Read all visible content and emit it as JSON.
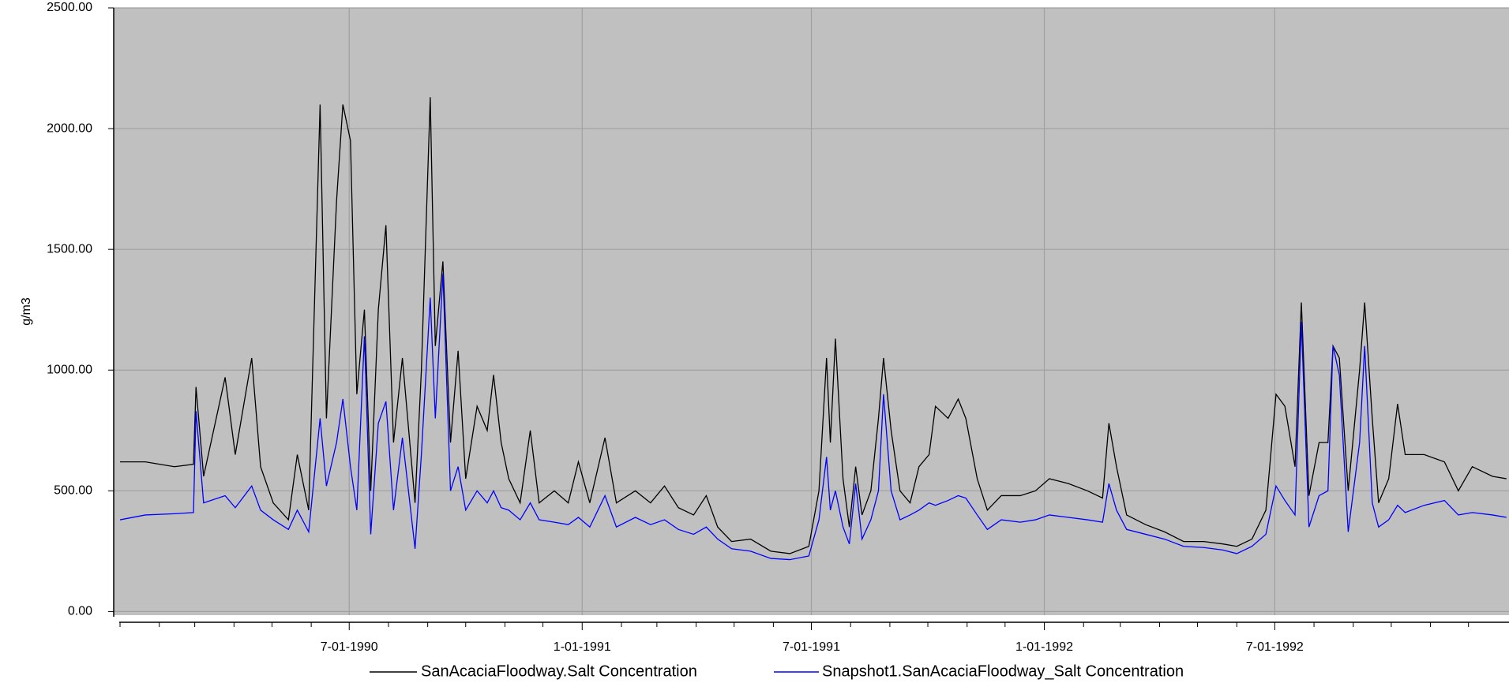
{
  "chart_data": {
    "type": "line",
    "y_label": "g/m3",
    "xlim": [
      "1989-12-27",
      "1993-01-02"
    ],
    "ylim": [
      -15,
      2500
    ],
    "yticks": [
      {
        "value": 0,
        "label": "0.00"
      },
      {
        "value": 500,
        "label": "500.00"
      },
      {
        "value": 1000,
        "label": "1000.00"
      },
      {
        "value": 1500,
        "label": "1500.00"
      },
      {
        "value": 2000,
        "label": "2000.00"
      },
      {
        "value": 2500,
        "label": "2500.00"
      }
    ],
    "xticks": [
      {
        "value": "1990-07-01",
        "label": "7-01-1990"
      },
      {
        "value": "1991-01-01",
        "label": "1-01-1991"
      },
      {
        "value": "1991-07-01",
        "label": "7-01-1991"
      },
      {
        "value": "1992-01-01",
        "label": "1-01-1992"
      },
      {
        "value": "1992-07-01",
        "label": "7-01-1992"
      }
    ],
    "xminorticks": [
      "1990-01-01",
      "1990-02-01",
      "1990-03-01",
      "1990-04-01",
      "1990-05-01",
      "1990-06-01",
      "1990-08-01",
      "1990-09-01",
      "1990-10-01",
      "1990-11-01",
      "1990-12-01",
      "1991-02-01",
      "1991-03-01",
      "1991-04-01",
      "1991-05-01",
      "1991-06-01",
      "1991-08-01",
      "1991-09-01",
      "1991-10-01",
      "1991-11-01",
      "1991-12-01",
      "1992-02-01",
      "1992-03-01",
      "1992-04-01",
      "1992-05-01",
      "1992-06-01",
      "1992-08-01",
      "1992-09-01",
      "1992-10-01",
      "1992-11-01",
      "1992-12-01"
    ],
    "grid": true,
    "background": "#c0c0c0",
    "x": [
      "1990-01-01",
      "1990-01-21",
      "1990-02-13",
      "1990-02-28",
      "1990-03-02",
      "1990-03-08",
      "1990-03-25",
      "1990-04-02",
      "1990-04-15",
      "1990-04-22",
      "1990-05-02",
      "1990-05-14",
      "1990-05-21",
      "1990-05-30",
      "1990-06-08",
      "1990-06-13",
      "1990-06-21",
      "1990-06-26",
      "1990-07-02",
      "1990-07-07",
      "1990-07-13",
      "1990-07-18",
      "1990-07-24",
      "1990-07-30",
      "1990-08-05",
      "1990-08-12",
      "1990-08-22",
      "1990-08-27",
      "1990-09-03",
      "1990-09-07",
      "1990-09-13",
      "1990-09-19",
      "1990-09-25",
      "1990-10-01",
      "1990-10-10",
      "1990-10-18",
      "1990-10-23",
      "1990-10-29",
      "1990-11-04",
      "1990-11-13",
      "1990-11-21",
      "1990-11-28",
      "1990-12-10",
      "1990-12-21",
      "1990-12-29",
      "1991-01-07",
      "1991-01-19",
      "1991-01-28",
      "1991-02-12",
      "1991-02-24",
      "1991-03-07",
      "1991-03-18",
      "1991-03-30",
      "1991-04-09",
      "1991-04-18",
      "1991-04-29",
      "1991-05-14",
      "1991-05-30",
      "1991-06-14",
      "1991-06-29",
      "1991-07-07",
      "1991-07-13",
      "1991-07-16",
      "1991-07-20",
      "1991-07-26",
      "1991-07-31",
      "1991-08-05",
      "1991-08-10",
      "1991-08-17",
      "1991-08-23",
      "1991-08-27",
      "1991-09-02",
      "1991-09-09",
      "1991-09-17",
      "1991-09-24",
      "1991-10-02",
      "1991-10-07",
      "1991-10-17",
      "1991-10-25",
      "1991-10-31",
      "1991-11-09",
      "1991-11-17",
      "1991-11-28",
      "1991-12-13",
      "1991-12-25",
      "1992-01-05",
      "1992-01-20",
      "1992-02-04",
      "1992-02-16",
      "1992-02-21",
      "1992-02-27",
      "1992-03-06",
      "1992-03-21",
      "1992-04-05",
      "1992-04-20",
      "1992-05-06",
      "1992-05-21",
      "1992-06-01",
      "1992-06-13",
      "1992-06-24",
      "1992-07-02",
      "1992-07-09",
      "1992-07-17",
      "1992-07-22",
      "1992-07-28",
      "1992-08-05",
      "1992-08-12",
      "1992-08-16",
      "1992-08-21",
      "1992-08-28",
      "1992-09-06",
      "1992-09-10",
      "1992-09-16",
      "1992-09-21",
      "1992-09-29",
      "1992-10-06",
      "1992-10-12",
      "1992-10-27",
      "1992-11-12",
      "1992-11-23",
      "1992-12-04",
      "1992-12-20",
      "1992-12-31"
    ],
    "series": [
      {
        "name": "SanAcaciaFloodway.Salt Concentration",
        "color": "#000000",
        "values": [
          620,
          620,
          600,
          610,
          930,
          560,
          970,
          650,
          1050,
          600,
          450,
          380,
          650,
          420,
          2100,
          800,
          1700,
          2100,
          1950,
          900,
          1250,
          500,
          1250,
          1600,
          700,
          1050,
          450,
          1000,
          2130,
          1100,
          1450,
          700,
          1080,
          550,
          850,
          750,
          980,
          700,
          550,
          450,
          750,
          450,
          500,
          450,
          620,
          450,
          720,
          450,
          500,
          450,
          520,
          430,
          400,
          480,
          350,
          290,
          300,
          250,
          240,
          270,
          500,
          1050,
          700,
          1130,
          550,
          350,
          600,
          400,
          500,
          800,
          1050,
          750,
          500,
          450,
          600,
          650,
          850,
          800,
          880,
          800,
          550,
          420,
          480,
          480,
          500,
          550,
          530,
          500,
          470,
          780,
          600,
          400,
          360,
          330,
          290,
          290,
          280,
          270,
          300,
          420,
          900,
          850,
          600,
          1280,
          480,
          700,
          700,
          1100,
          1050,
          500,
          1000,
          1280,
          800,
          450,
          550,
          860,
          650,
          650,
          620,
          500,
          600,
          560,
          550
        ]
      },
      {
        "name": "Snapshot1.SanAcaciaFloodway_Salt Concentration",
        "color": "#0000ff",
        "values": [
          380,
          400,
          405,
          410,
          830,
          450,
          480,
          430,
          520,
          420,
          380,
          340,
          420,
          330,
          800,
          520,
          700,
          880,
          600,
          420,
          1140,
          320,
          780,
          870,
          420,
          720,
          260,
          650,
          1300,
          800,
          1400,
          500,
          600,
          420,
          500,
          450,
          500,
          430,
          420,
          380,
          450,
          380,
          370,
          360,
          390,
          350,
          480,
          350,
          390,
          360,
          380,
          340,
          320,
          350,
          300,
          260,
          250,
          220,
          215,
          230,
          380,
          640,
          420,
          500,
          350,
          280,
          530,
          300,
          380,
          500,
          900,
          500,
          380,
          400,
          420,
          450,
          440,
          460,
          480,
          470,
          400,
          340,
          380,
          370,
          380,
          400,
          390,
          380,
          370,
          530,
          420,
          340,
          320,
          300,
          270,
          265,
          255,
          240,
          270,
          320,
          520,
          460,
          400,
          1200,
          350,
          480,
          500,
          1100,
          980,
          330,
          700,
          1100,
          450,
          350,
          380,
          440,
          410,
          440,
          460,
          400,
          410,
          400,
          390
        ]
      }
    ]
  }
}
